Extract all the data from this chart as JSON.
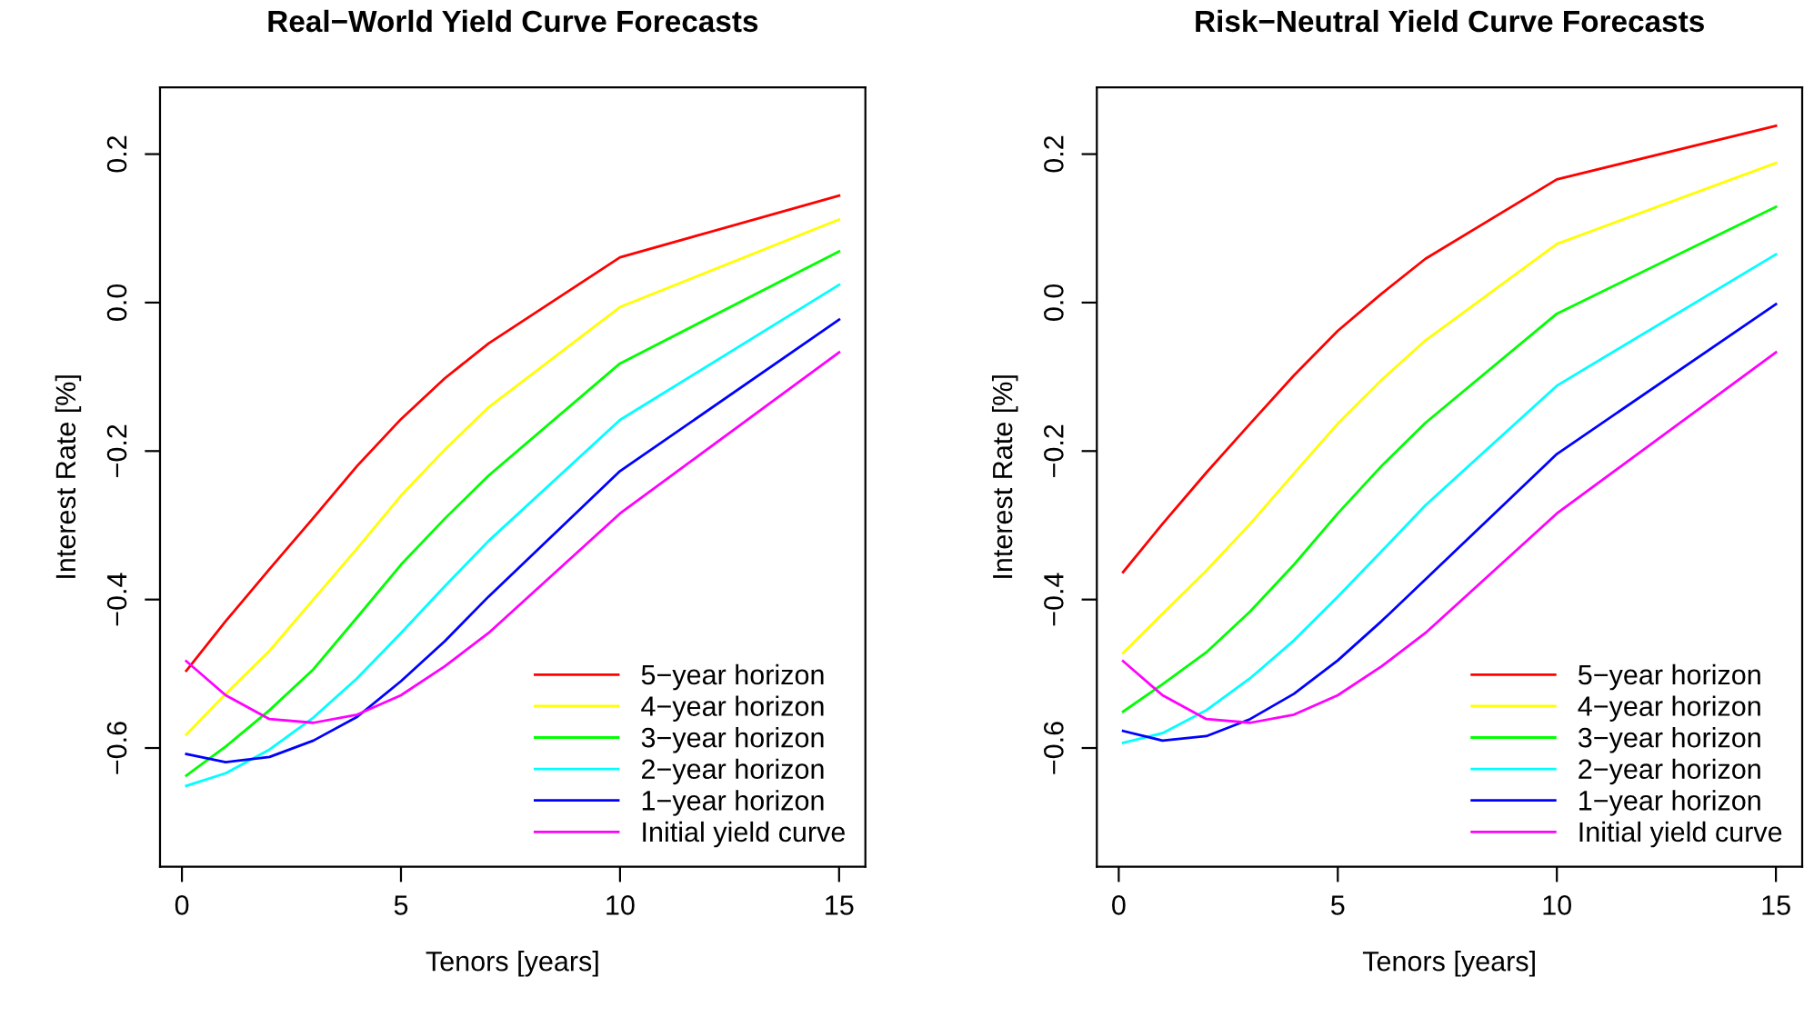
{
  "chart_data": [
    {
      "type": "line",
      "title": "Real−World Yield Curve Forecasts",
      "xlabel": "Tenors [years]",
      "ylabel": "Interest Rate [%]",
      "x": [
        0.1,
        1,
        2,
        3,
        4,
        5,
        6,
        7,
        10,
        15
      ],
      "xlim": [
        -0.5,
        15.6
      ],
      "xticks": [
        0,
        5,
        10,
        15
      ],
      "ylim": [
        -0.76,
        0.29
      ],
      "yticks": [
        {
          "value": -0.6,
          "label": "−0.6"
        },
        {
          "value": -0.4,
          "label": "−0.4"
        },
        {
          "value": -0.2,
          "label": "−0.2"
        },
        {
          "value": 0.0,
          "label": "0.0"
        },
        {
          "value": 0.2,
          "label": "0.2"
        }
      ],
      "grid": false,
      "legend": "bottom right",
      "marker": "none",
      "line_style": "solid",
      "series": [
        {
          "name": "5−year horizon",
          "color": "#ff0000",
          "values": [
            -0.496,
            -0.429,
            -0.359,
            -0.29,
            -0.22,
            -0.157,
            -0.102,
            -0.055,
            0.061,
            0.144
          ]
        },
        {
          "name": "4−year horizon",
          "color": "#ffff00",
          "values": [
            -0.582,
            -0.527,
            -0.469,
            -0.4,
            -0.331,
            -0.26,
            -0.198,
            -0.141,
            -0.006,
            0.112
          ]
        },
        {
          "name": "3−year horizon",
          "color": "#00ff00",
          "values": [
            -0.637,
            -0.598,
            -0.549,
            -0.494,
            -0.424,
            -0.353,
            -0.291,
            -0.233,
            -0.082,
            0.069
          ]
        },
        {
          "name": "2−year horizon",
          "color": "#00ffff",
          "values": [
            -0.651,
            -0.634,
            -0.602,
            -0.559,
            -0.506,
            -0.445,
            -0.382,
            -0.321,
            -0.158,
            0.024
          ]
        },
        {
          "name": "1−year horizon",
          "color": "#0000ff",
          "values": [
            -0.608,
            -0.619,
            -0.612,
            -0.59,
            -0.558,
            -0.51,
            -0.456,
            -0.396,
            -0.227,
            -0.023
          ]
        },
        {
          "name": "Initial yield curve",
          "color": "#ff00ff",
          "values": [
            -0.483,
            -0.529,
            -0.561,
            -0.566,
            -0.555,
            -0.529,
            -0.49,
            -0.445,
            -0.284,
            -0.067
          ]
        }
      ]
    },
    {
      "type": "line",
      "title": "Risk−Neutral Yield Curve Forecasts",
      "xlabel": "Tenors [years]",
      "ylabel": "Interest Rate [%]",
      "x": [
        0.1,
        1,
        2,
        3,
        4,
        5,
        6,
        7,
        10,
        15
      ],
      "xlim": [
        -0.5,
        15.6
      ],
      "xticks": [
        0,
        5,
        10,
        15
      ],
      "ylim": [
        -0.76,
        0.29
      ],
      "yticks": [
        {
          "value": -0.6,
          "label": "−0.6"
        },
        {
          "value": -0.4,
          "label": "−0.4"
        },
        {
          "value": -0.2,
          "label": "−0.2"
        },
        {
          "value": 0.0,
          "label": "0.0"
        },
        {
          "value": 0.2,
          "label": "0.2"
        }
      ],
      "grid": false,
      "legend": "bottom right",
      "marker": "none",
      "line_style": "solid",
      "series": [
        {
          "name": "5−year horizon",
          "color": "#ff0000",
          "values": [
            -0.363,
            -0.298,
            -0.229,
            -0.163,
            -0.098,
            -0.038,
            0.012,
            0.059,
            0.166,
            0.238
          ]
        },
        {
          "name": "4−year horizon",
          "color": "#ffff00",
          "values": [
            -0.472,
            -0.419,
            -0.361,
            -0.298,
            -0.23,
            -0.163,
            -0.104,
            -0.051,
            0.079,
            0.188
          ]
        },
        {
          "name": "3−year horizon",
          "color": "#00ff00",
          "values": [
            -0.551,
            -0.514,
            -0.471,
            -0.416,
            -0.353,
            -0.284,
            -0.22,
            -0.162,
            -0.015,
            0.129
          ]
        },
        {
          "name": "2−year horizon",
          "color": "#00ffff",
          "values": [
            -0.593,
            -0.58,
            -0.549,
            -0.506,
            -0.455,
            -0.396,
            -0.335,
            -0.273,
            -0.112,
            0.065
          ]
        },
        {
          "name": "1−year horizon",
          "color": "#0000ff",
          "values": [
            -0.577,
            -0.59,
            -0.584,
            -0.561,
            -0.527,
            -0.482,
            -0.429,
            -0.373,
            -0.204,
            -0.002
          ]
        },
        {
          "name": "Initial yield curve",
          "color": "#ff00ff",
          "values": [
            -0.483,
            -0.529,
            -0.561,
            -0.566,
            -0.555,
            -0.529,
            -0.49,
            -0.445,
            -0.284,
            -0.067
          ]
        }
      ]
    }
  ]
}
